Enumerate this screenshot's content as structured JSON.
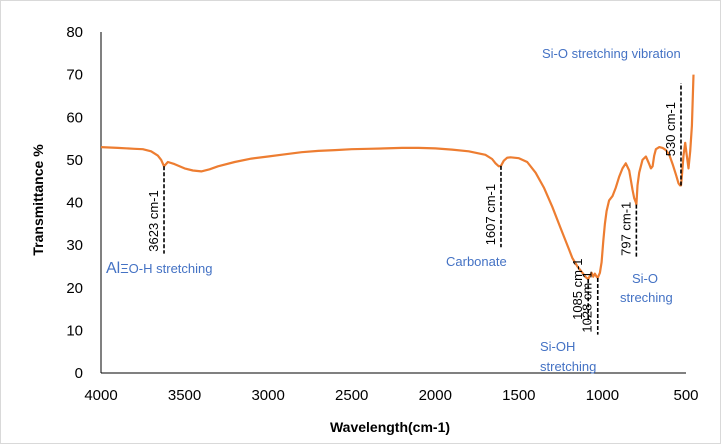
{
  "chart_data": {
    "type": "line",
    "title": "",
    "xlabel": "Wavelength(cm-1)",
    "ylabel": "Transmittance %",
    "xlim": [
      4000,
      500
    ],
    "x_reversed": true,
    "ylim": [
      0,
      80
    ],
    "xticks": [
      "4000",
      "3500",
      "3000",
      "2500",
      "2000",
      "1500",
      "1000",
      "500"
    ],
    "yticks": [
      "0",
      "10",
      "20",
      "30",
      "40",
      "50",
      "60",
      "70",
      "80"
    ],
    "grid": false,
    "legend": "none",
    "colors": {
      "series": "#ED7D31",
      "annotation": "#4472C4",
      "marker": "#000000"
    },
    "series": [
      {
        "x": [
          4000,
          3900,
          3800,
          3750,
          3700,
          3660,
          3640,
          3623,
          3600,
          3560,
          3500,
          3450,
          3400,
          3350,
          3300,
          3200,
          3100,
          3000,
          2900,
          2800,
          2700,
          2600,
          2500,
          2400,
          2300,
          2200,
          2100,
          2000,
          1900,
          1800,
          1700,
          1660,
          1640,
          1620,
          1607,
          1590,
          1570,
          1550,
          1500,
          1450,
          1400,
          1350,
          1300,
          1250,
          1200,
          1180,
          1150,
          1120,
          1100,
          1085,
          1075,
          1065,
          1055,
          1045,
          1035,
          1028,
          1015,
          1005,
          995,
          985,
          975,
          960,
          940,
          920,
          900,
          880,
          860,
          840,
          820,
          810,
          800,
          797,
          790,
          780,
          760,
          740,
          720,
          710,
          700,
          690,
          680,
          660,
          640,
          620,
          600,
          580,
          560,
          545,
          535,
          530,
          525,
          515,
          505,
          495,
          485,
          475,
          465,
          455
        ],
        "y": [
          53,
          52.8,
          52.6,
          52.5,
          52,
          51,
          50,
          48.5,
          49.5,
          49,
          48,
          47.5,
          47.3,
          47.8,
          48.5,
          49.5,
          50.3,
          50.8,
          51.3,
          51.8,
          52.1,
          52.3,
          52.5,
          52.6,
          52.7,
          52.8,
          52.8,
          52.7,
          52.4,
          52,
          51.2,
          50.2,
          49.2,
          48.5,
          48.6,
          49.8,
          50.5,
          50.6,
          50.4,
          49.5,
          47,
          43.5,
          39,
          34,
          29,
          27,
          25,
          23.5,
          22.5,
          22,
          22.8,
          23.5,
          22.6,
          23.3,
          22.6,
          22.3,
          23.5,
          26,
          31,
          35,
          38,
          40.5,
          41.5,
          43.5,
          46,
          48,
          49.2,
          47.5,
          43,
          41,
          40,
          39.5,
          44,
          47,
          50,
          50.8,
          49,
          48,
          48.5,
          51,
          52.5,
          53,
          52.8,
          52.3,
          51.2,
          49,
          46.5,
          44.5,
          44,
          44,
          46,
          51,
          54,
          51,
          48,
          52,
          58,
          70
        ]
      }
    ],
    "annotations": [
      {
        "label": "3623 cm-1",
        "x": 3623,
        "y_from": 48.5,
        "y_to": 28
      },
      {
        "label": "1607 cm-1",
        "x": 1607,
        "y_from": 48.6,
        "y_to": 29.5
      },
      {
        "label": "1085 cm-1",
        "x": 1085,
        "y_from": 22,
        "y_to": 12
      },
      {
        "label": "1028 cm-1",
        "x": 1028,
        "y_from": 22.3,
        "y_to": 9
      },
      {
        "label": "797 cm-1",
        "x": 797,
        "y_from": 39.5,
        "y_to": 27
      },
      {
        "label": "530 cm-1",
        "x": 530,
        "y_from": 44,
        "y_to": 68
      }
    ],
    "band_labels": [
      {
        "prefix": "Al",
        "text": "ΞO-H stretching"
      },
      {
        "text": "Carbonate"
      },
      {
        "text": "Si-OH stretching"
      },
      {
        "text": "Si-O streching"
      },
      {
        "text": "Si-O stretching vibration"
      }
    ]
  }
}
